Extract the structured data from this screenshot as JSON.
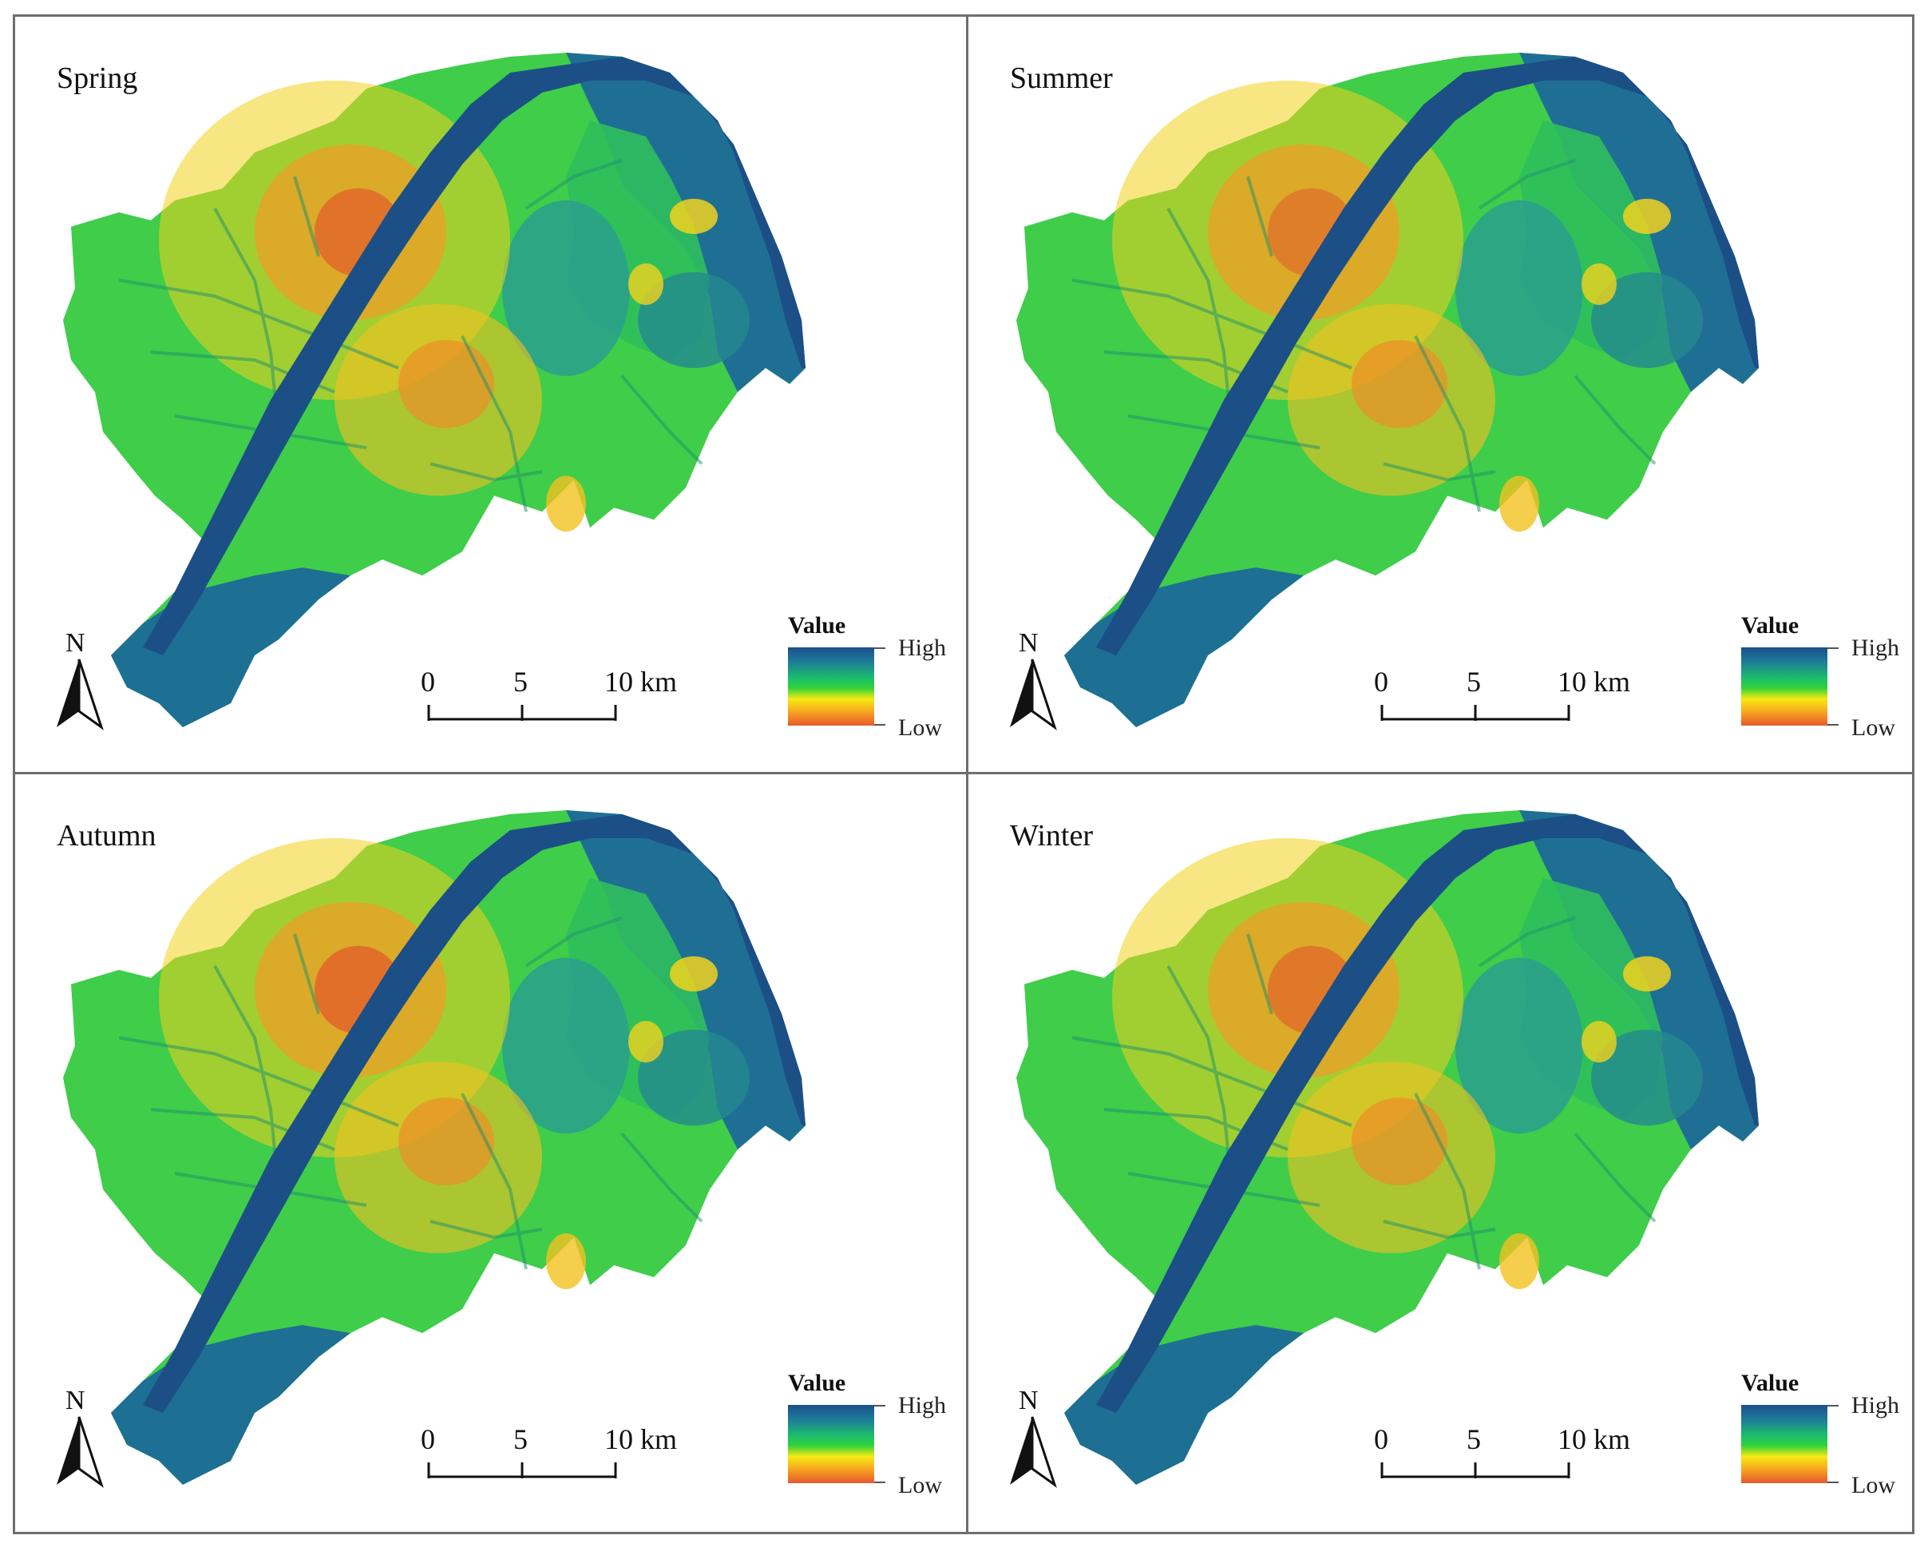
{
  "figure": {
    "panels": [
      {
        "title": "Spring"
      },
      {
        "title": "Summer"
      },
      {
        "title": "Autumn"
      },
      {
        "title": "Winter"
      }
    ],
    "legend": {
      "title": "Value",
      "high": "High",
      "low": "Low"
    },
    "north_arrow": {
      "label": "N",
      "icon": "north-arrow-icon"
    },
    "scale_bar": {
      "labels": [
        "0",
        "5",
        "10 km"
      ]
    },
    "colors": {
      "high": "#1b4f8a",
      "mid": "#32d33a",
      "low_mid": "#f7ea12",
      "low": "#e6592c"
    }
  }
}
